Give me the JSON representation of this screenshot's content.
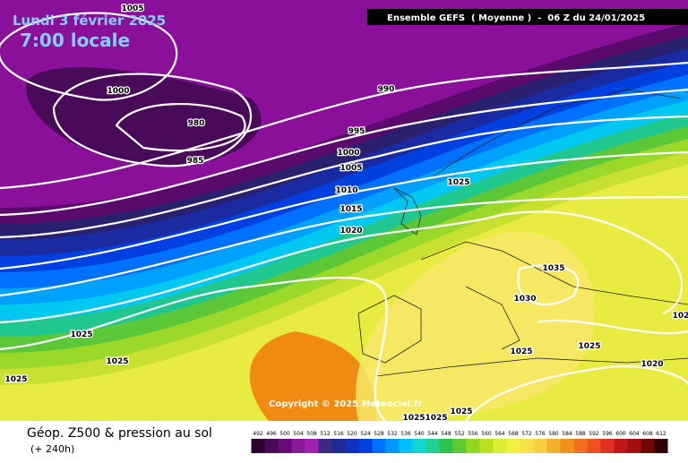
{
  "header": {
    "date": "Lundi 3 février 2025",
    "time": "7:00 locale",
    "model": "Ensemble GEFS  ( Moyenne )  -  06 Z du 24/01/2025"
  },
  "copyright": "Copyright © 2025 Meteociel.fr",
  "footer": {
    "title": "Géop. Z500 & pression au sol",
    "lead": "(+ 240h)"
  },
  "isobar_labels": [
    "1005",
    "1000",
    "980",
    "985",
    "990",
    "995",
    "1000",
    "1005",
    "1010",
    "1015",
    "1020",
    "1025",
    "1035",
    "1030",
    "1025",
    "1025",
    "1020",
    "1025",
    "1025",
    "1025",
    "1025",
    "1025",
    "1025",
    "102"
  ],
  "colorbar": {
    "ticks": [
      492,
      496,
      500,
      504,
      508,
      512,
      516,
      520,
      524,
      528,
      532,
      536,
      540,
      544,
      548,
      552,
      556,
      560,
      564,
      568,
      572,
      576,
      580,
      584,
      588,
      592,
      596,
      600,
      604,
      608,
      612
    ],
    "colors": [
      "#2a0030",
      "#4a0a5a",
      "#6a0a7a",
      "#8a1a9a",
      "#a020b0",
      "#3a2a80",
      "#202a90",
      "#1030c0",
      "#0040e0",
      "#0070ff",
      "#0098ff",
      "#00c0ff",
      "#10d8d0",
      "#20d090",
      "#30c050",
      "#60c830",
      "#90d820",
      "#b8e020",
      "#d8f030",
      "#f0f040",
      "#f8e048",
      "#f8d040",
      "#f0b030",
      "#f09020",
      "#f07020",
      "#f05020",
      "#e03020",
      "#c01818",
      "#a01010",
      "#700808",
      "#300000"
    ]
  }
}
